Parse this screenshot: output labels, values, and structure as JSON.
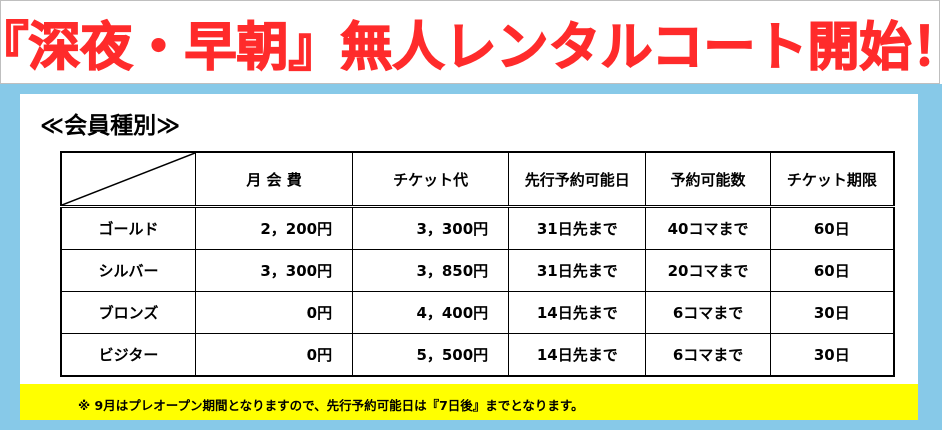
{
  "banner": {
    "title": "『深夜・早朝』無人レンタルコート開始！"
  },
  "section": {
    "title": "≪会員種別≫"
  },
  "table": {
    "headers": [
      "",
      "月 会 費",
      "チケット代",
      "先行予約可能日",
      "予約可能数",
      "チケット期限"
    ],
    "rows": [
      [
        "ゴールド",
        "2，200円",
        "3，300円",
        "31日先まで",
        "40コマまで",
        "60日"
      ],
      [
        "シルバー",
        "3，300円",
        "3，850円",
        "31日先まで",
        "20コマまで",
        "60日"
      ],
      [
        "ブロンズ",
        "0円",
        "4，400円",
        "14日先まで",
        "6コマまで",
        "30日"
      ],
      [
        "ビジター",
        "0円",
        "5，500円",
        "14日先まで",
        "6コマまで",
        "30日"
      ]
    ]
  },
  "notice": {
    "text": "※ 9月はプレオープン期間となりますので、先行予約可能日は『7日後』までとなります。"
  },
  "colors": {
    "title_red": "#ff2b2b",
    "panel_blue": "#87c9e8",
    "notice_yellow": "#ffff00"
  }
}
